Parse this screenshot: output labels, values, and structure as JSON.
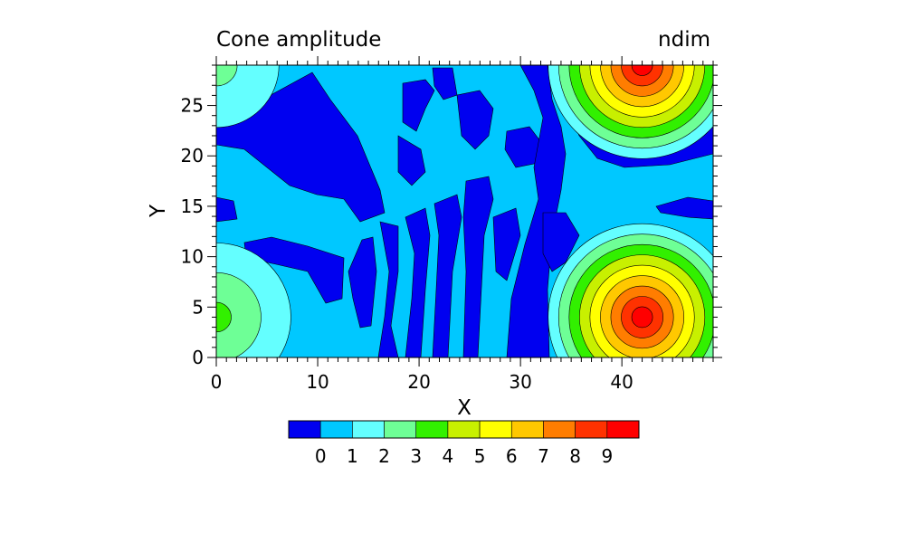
{
  "chart_data": {
    "type": "heatmap",
    "title_left": "Cone amplitude",
    "title_right": "ndim",
    "xlabel": "X",
    "ylabel": "Y",
    "xlim": [
      0,
      49
    ],
    "ylim": [
      0,
      29
    ],
    "xticks": [
      0,
      10,
      20,
      30,
      40
    ],
    "yticks": [
      0,
      5,
      10,
      15,
      20,
      25
    ],
    "levels": [
      0,
      1,
      2,
      3,
      4,
      5,
      6,
      7,
      8,
      9
    ],
    "colorbar_colors": [
      "#0000f0",
      "#00c8ff",
      "#64ffff",
      "#6eff96",
      "#32f000",
      "#c8f000",
      "#ffff00",
      "#ffc800",
      "#ff7d00",
      "#ff3200",
      "#ff0000"
    ],
    "peaks": [
      {
        "x": 42,
        "y": 4,
        "amplitude": 10
      },
      {
        "x": 42,
        "y": 29,
        "amplitude": 10
      },
      {
        "x": 0,
        "y": 4,
        "amplitude": 3.5
      },
      {
        "x": 0,
        "y": 29,
        "amplitude": 2.5
      }
    ]
  }
}
